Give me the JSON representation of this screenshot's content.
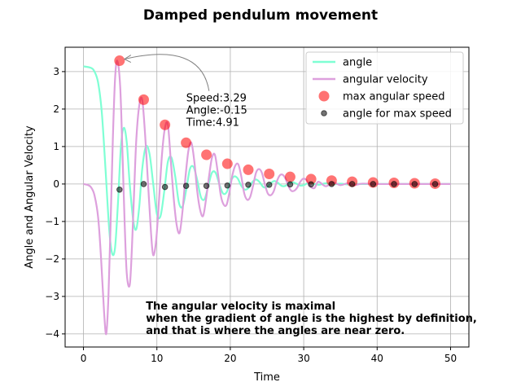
{
  "chart_data": {
    "type": "line",
    "title": "Damped pendulum movement",
    "xlabel": "Time",
    "ylabel": "Angle and Angular Velocity",
    "xlim": [
      -2.5,
      52.5
    ],
    "ylim": [
      -4.35,
      3.65
    ],
    "x_ticks": [
      0,
      10,
      20,
      30,
      40,
      50
    ],
    "x_tick_labels": [
      "0",
      "10",
      "20",
      "30",
      "40",
      "50"
    ],
    "y_ticks": [
      -4,
      -3,
      -2,
      -1,
      0,
      1,
      2,
      3
    ],
    "y_tick_labels": [
      "−4",
      "−3",
      "−2",
      "−1",
      "0",
      "1",
      "2",
      "3"
    ],
    "grid": true,
    "legend_position": "top-right",
    "series": [
      {
        "name": "angle",
        "kind": "line",
        "color": "#7fffd4",
        "x": [
          0,
          1,
          1.5,
          2,
          2.5,
          3,
          3.5,
          3.9,
          4.3,
          4.7,
          5.1,
          5.5,
          5.9,
          6.3,
          6.8,
          7.2,
          7.6,
          8.0,
          8.5,
          9.0,
          9.5,
          10.0,
          10.5,
          11.0,
          11.5,
          12.0,
          12.5,
          13.0,
          13.5,
          14.0,
          14.5,
          15.0,
          15.5,
          16.0,
          16.5,
          17.0,
          17.5,
          18.0,
          18.5,
          19.0,
          19.5,
          20.0,
          20.5,
          21.0,
          21.5,
          22.0,
          22.5,
          23.0,
          23.5,
          24.0,
          24.5,
          25.0,
          25.5,
          26.0,
          26.5,
          27.0,
          27.5,
          28.0,
          28.5,
          29.0,
          29.5,
          30.0,
          30.5,
          31.0,
          32,
          33,
          34,
          35,
          36,
          37,
          38,
          40,
          42,
          44,
          46,
          48,
          50
        ],
        "y": [
          3.14,
          3.1,
          3.0,
          2.7,
          1.9,
          0.4,
          -1.2,
          -1.85,
          -1.7,
          -0.5,
          1.0,
          1.5,
          1.1,
          0.0,
          -1.0,
          -1.2,
          -0.6,
          0.4,
          1.0,
          0.8,
          0.0,
          -0.8,
          -0.85,
          -0.2,
          0.6,
          0.7,
          0.2,
          -0.5,
          -0.6,
          -0.15,
          0.4,
          0.45,
          0.1,
          -0.35,
          -0.4,
          -0.05,
          0.3,
          0.3,
          0.0,
          -0.25,
          -0.22,
          0.05,
          0.2,
          0.15,
          -0.05,
          -0.15,
          -0.1,
          0.05,
          0.12,
          0.05,
          -0.08,
          -0.08,
          0.02,
          0.08,
          0.03,
          -0.05,
          -0.05,
          0.02,
          0.05,
          0.01,
          -0.04,
          -0.03,
          0.02,
          0.03,
          -0.02,
          0.02,
          -0.01,
          0.01,
          -0.01,
          0.0,
          0.0,
          0.0,
          0.0,
          0.0,
          0.0,
          0.0,
          0.0
        ]
      },
      {
        "name": "angular velocity",
        "kind": "line",
        "color": "#dda0dd",
        "x": [
          0,
          0.5,
          1.0,
          1.5,
          2.0,
          2.4,
          2.8,
          3.1,
          3.4,
          3.7,
          4.0,
          4.3,
          4.6,
          5.0,
          5.3,
          5.6,
          5.9,
          6.3,
          6.6,
          6.9,
          7.2,
          7.6,
          8.0,
          8.4,
          8.8,
          9.2,
          9.5,
          9.9,
          10.3,
          10.7,
          11.1,
          11.5,
          11.9,
          12.3,
          12.7,
          13.1,
          13.5,
          13.9,
          14.3,
          14.7,
          15.1,
          15.5,
          15.9,
          16.3,
          16.7,
          17.1,
          17.5,
          17.9,
          18.3,
          18.7,
          19.1,
          19.5,
          19.9,
          20.3,
          20.7,
          21.1,
          21.5,
          21.9,
          22.3,
          22.7,
          23.1,
          23.5,
          23.9,
          24.3,
          24.7,
          25.1,
          25.5,
          25.9,
          26.3,
          26.7,
          27.1,
          27.5,
          27.9,
          28.3,
          28.7,
          29.1,
          29.5,
          29.9,
          30.3,
          30.7,
          31.1,
          31.5,
          32,
          33,
          34,
          35,
          36,
          37,
          38,
          40,
          42,
          44,
          46,
          48,
          50
        ],
        "y": [
          0.0,
          -0.02,
          -0.08,
          -0.3,
          -0.9,
          -2.0,
          -3.4,
          -4.0,
          -3.0,
          -1.0,
          1.2,
          2.8,
          3.29,
          2.6,
          0.9,
          -1.0,
          -2.4,
          -2.7,
          -1.7,
          -0.2,
          1.2,
          2.1,
          2.25,
          1.3,
          0.0,
          -1.3,
          -1.9,
          -1.5,
          -0.4,
          0.8,
          1.5,
          1.58,
          0.6,
          -0.4,
          -1.1,
          -1.3,
          -0.7,
          0.2,
          0.9,
          1.1,
          0.6,
          -0.2,
          -0.7,
          -0.85,
          -0.4,
          0.2,
          0.7,
          0.78,
          0.3,
          -0.3,
          -0.55,
          -0.55,
          -0.2,
          0.25,
          0.5,
          0.52,
          0.2,
          -0.25,
          -0.42,
          -0.35,
          -0.05,
          0.3,
          0.4,
          0.3,
          0.0,
          -0.25,
          -0.3,
          -0.2,
          0.05,
          0.22,
          0.25,
          0.15,
          -0.05,
          -0.18,
          -0.18,
          -0.1,
          0.05,
          0.14,
          0.12,
          0.0,
          -0.1,
          -0.1,
          0.06,
          -0.06,
          0.04,
          -0.03,
          0.02,
          -0.02,
          0.01,
          0.0,
          0.0,
          0.0,
          0.0,
          0.0,
          0.0
        ]
      },
      {
        "name": "max angular speed",
        "kind": "scatter",
        "color": "#ff0000",
        "x": [
          4.91,
          8.2,
          11.1,
          13.98,
          16.75,
          19.6,
          22.45,
          25.3,
          28.15,
          31.0,
          33.8,
          36.6,
          39.45,
          42.3,
          45.1,
          47.9
        ],
        "y": [
          3.29,
          2.25,
          1.58,
          1.1,
          0.78,
          0.54,
          0.38,
          0.27,
          0.19,
          0.13,
          0.09,
          0.06,
          0.04,
          0.03,
          0.02,
          0.01
        ]
      },
      {
        "name": "angle for max speed",
        "kind": "scatter",
        "color": "#000000",
        "x": [
          4.91,
          8.2,
          11.1,
          13.98,
          16.75,
          19.6,
          22.45,
          25.3,
          28.15,
          31.0,
          33.8,
          36.6,
          39.45,
          42.3,
          45.1,
          47.9
        ],
        "y": [
          -0.15,
          0.0,
          -0.08,
          -0.05,
          -0.05,
          -0.04,
          -0.02,
          -0.02,
          -0.01,
          -0.01,
          0.0,
          0.0,
          0.0,
          0.0,
          0.0,
          0.0
        ]
      }
    ],
    "annotations": [
      {
        "id": "max_point",
        "lines": [
          "Speed:3.29",
          "Angle:-0.15",
          "Time:4.91"
        ],
        "point": [
          4.91,
          3.29
        ],
        "text_anchor": [
          14.0,
          2.2
        ],
        "arrow": true
      },
      {
        "id": "explanation",
        "bold": true,
        "lines": [
          "The angular velocity is maximal",
          "when the gradient of angle is the highest by definition,",
          "and that is where the angles are near zero."
        ],
        "text_anchor": [
          8.5,
          -3.35
        ]
      }
    ]
  }
}
